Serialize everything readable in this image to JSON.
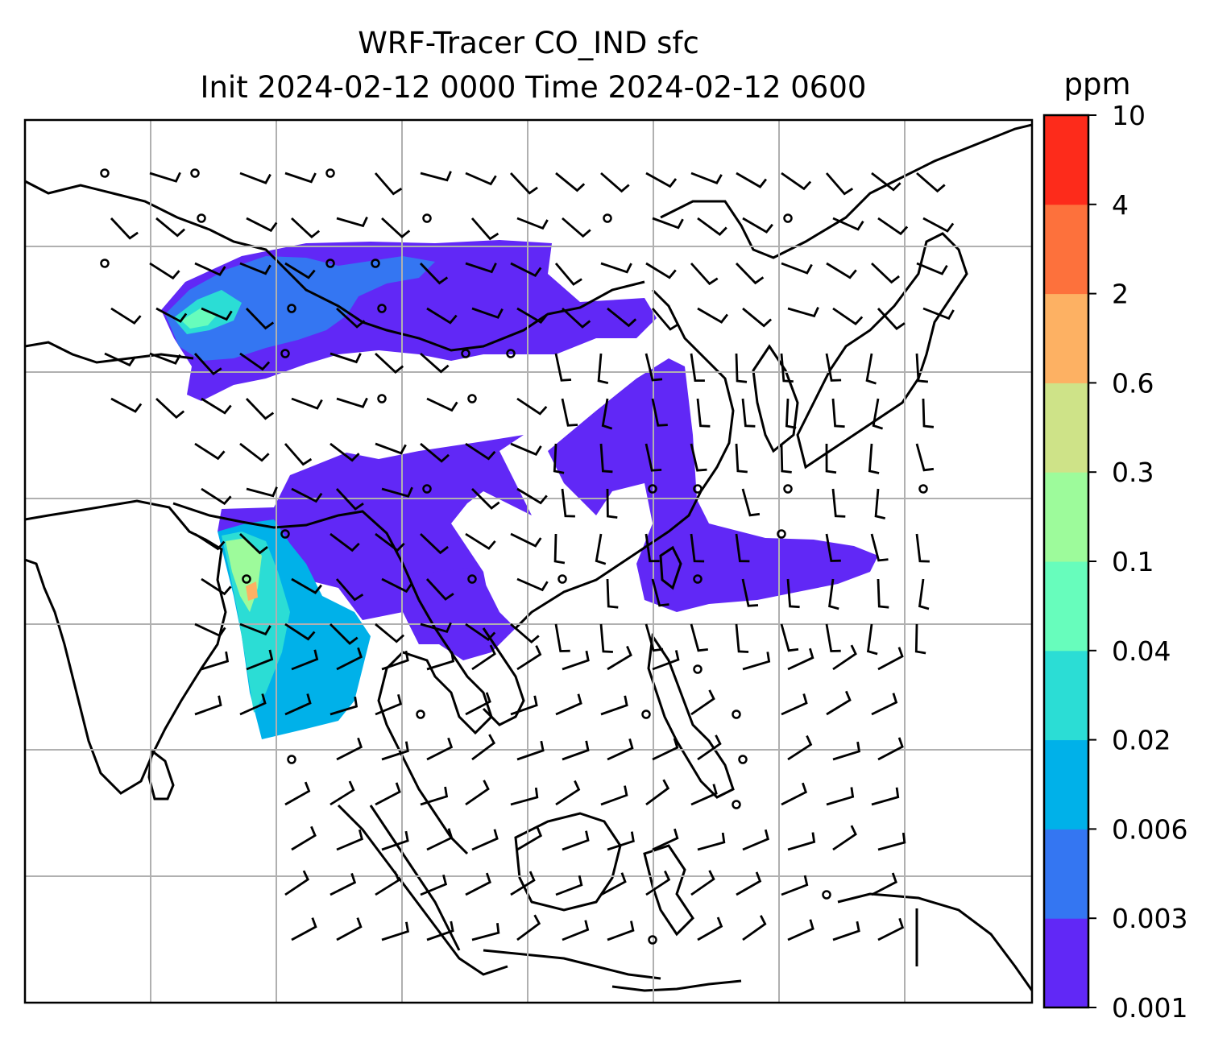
{
  "title_line1": "WRF-Tracer CO_IND sfc",
  "title_line2": "Init 2024-02-12 0000 Time 2024-02-12 0600",
  "colorbar": {
    "unit": "ppm",
    "ticks": [
      "0.001",
      "0.003",
      "0.006",
      "0.02",
      "0.04",
      "0.1",
      "0.3",
      "0.6",
      "2",
      "4",
      "10"
    ],
    "colors": [
      "#6128f6",
      "#3476f2",
      "#00b1e9",
      "#2bddd5",
      "#67fdbc",
      "#9dfb9b",
      "#ceE388",
      "#fdb163",
      "#fd713c",
      "#fd2b1b"
    ]
  },
  "colors": {
    "gridline": "#b0b0b0",
    "coastline": "#000000"
  }
}
